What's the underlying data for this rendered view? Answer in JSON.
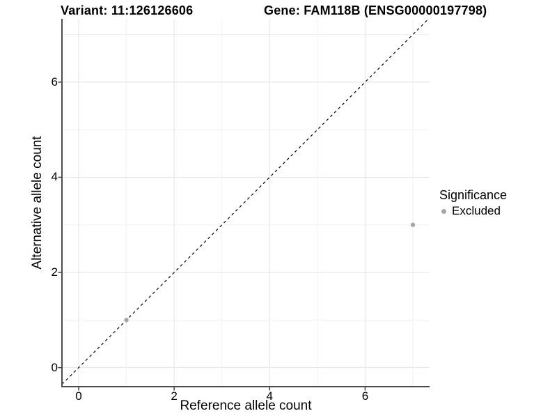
{
  "chart_data": {
    "type": "scatter",
    "titles": {
      "left": "Variant: 11:126126606",
      "right": "Gene: FAM118B (ENSG00000197798)"
    },
    "xlabel": "Reference allele count",
    "ylabel": "Alternative allele count",
    "x_ticks": [
      0,
      2,
      4,
      6
    ],
    "y_ticks": [
      0,
      2,
      4,
      6
    ],
    "x_minor_ticks": [
      1,
      3,
      5,
      7
    ],
    "y_minor_ticks": [
      1,
      3,
      5,
      7
    ],
    "xlim": [
      -0.35,
      7.35
    ],
    "ylim": [
      -0.4,
      7.33
    ],
    "grid": "on",
    "legend": {
      "title": "Significance",
      "position": "right",
      "entries": [
        {
          "label": "Excluded",
          "color": "#a6a6a6"
        }
      ]
    },
    "series": [
      {
        "name": "Excluded",
        "color": "#a6a6a6",
        "points": [
          [
            1,
            1
          ],
          [
            7,
            3
          ]
        ]
      }
    ],
    "identity_line": {
      "equation": "y = x",
      "style": "dashed",
      "color": "#000000"
    }
  },
  "colors": {
    "background": "#ffffff",
    "grid_major": "#e4e4e4",
    "grid_minor": "#f1f1f1",
    "axis_line": "#4b4b4b",
    "tick_mark": "#404040",
    "text": "#000000",
    "point": "#a6a6a6"
  }
}
